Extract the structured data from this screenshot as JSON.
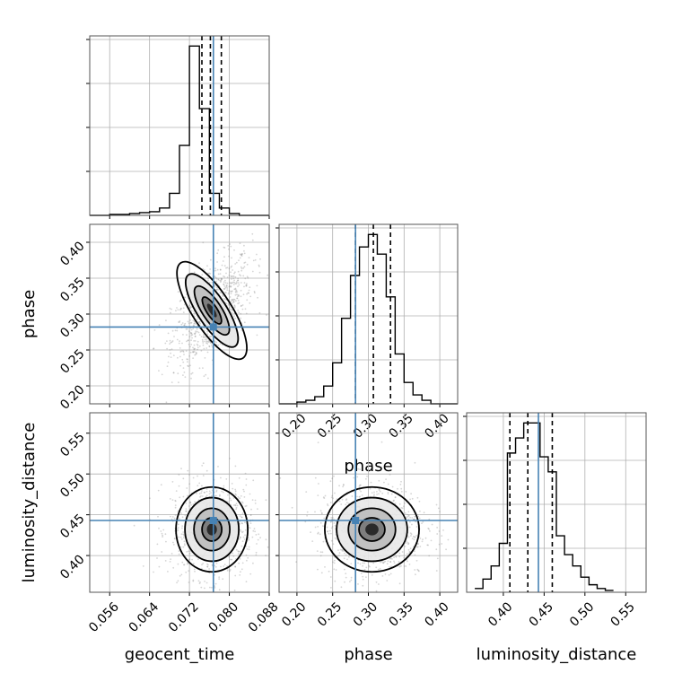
{
  "colors": {
    "truth": "#4682b4",
    "hist": "#000000",
    "grid": "#b0b0b0",
    "scatter": "#888888"
  },
  "chart_data": [
    {
      "type": "histogram",
      "panel": "geocent_time",
      "xlim": [
        0.052,
        0.088
      ],
      "bin_edges": [
        0.052,
        0.054,
        0.056,
        0.058,
        0.06,
        0.062,
        0.064,
        0.066,
        0.068,
        0.07,
        0.072,
        0.074,
        0.076,
        0.078,
        0.08,
        0.082,
        0.084,
        0.086,
        0.088
      ],
      "counts": [
        0,
        0,
        0.005,
        0.005,
        0.01,
        0.015,
        0.02,
        0.04,
        0.12,
        0.38,
        0.92,
        0.58,
        0.12,
        0.04,
        0.01,
        0,
        0,
        0
      ],
      "quantile_lines": [
        0.0745,
        0.0762,
        0.0784
      ],
      "truth": 0.0768,
      "grid": true
    },
    {
      "type": "histogram",
      "panel": "phase",
      "xlim": [
        0.175,
        0.425
      ],
      "bin_edges": [
        0.175,
        0.1875,
        0.2,
        0.2125,
        0.225,
        0.2375,
        0.25,
        0.2625,
        0.275,
        0.2875,
        0.3,
        0.3125,
        0.325,
        0.3375,
        0.35,
        0.3625,
        0.375,
        0.3875,
        0.4,
        0.4125,
        0.425
      ],
      "counts": [
        0,
        0,
        0.01,
        0.02,
        0.04,
        0.1,
        0.23,
        0.48,
        0.72,
        0.88,
        0.95,
        0.84,
        0.6,
        0.28,
        0.12,
        0.05,
        0.02,
        0,
        0,
        0
      ],
      "quantile_lines": [
        0.282,
        0.307,
        0.331
      ],
      "truth": 0.282,
      "xticks": [
        "0.20",
        "0.25",
        "0.30",
        "0.35",
        "0.40"
      ],
      "xlabel": "phase",
      "grid": true
    },
    {
      "type": "histogram",
      "panel": "luminosity_distance",
      "xlim": [
        0.355,
        0.575
      ],
      "bin_edges": [
        0.365,
        0.375,
        0.385,
        0.395,
        0.405,
        0.415,
        0.425,
        0.435,
        0.445,
        0.455,
        0.465,
        0.475,
        0.485,
        0.495,
        0.505,
        0.515,
        0.525,
        0.535
      ],
      "counts": [
        0.02,
        0.07,
        0.14,
        0.26,
        0.74,
        0.82,
        0.9,
        0.9,
        0.72,
        0.64,
        0.3,
        0.2,
        0.14,
        0.08,
        0.04,
        0.02,
        0.01
      ],
      "quantile_lines": [
        0.408,
        0.43,
        0.46
      ],
      "truth": 0.443,
      "xticks": [
        "0.40",
        "0.45",
        "0.50",
        "0.55"
      ],
      "xlabel": "luminosity_distance",
      "grid": true
    },
    {
      "type": "scatter",
      "panel": "phase vs geocent_time",
      "xlim": [
        0.052,
        0.088
      ],
      "ylim": [
        0.175,
        0.425
      ],
      "center": [
        0.0765,
        0.305
      ],
      "spread": [
        0.0035,
        0.033
      ],
      "correlation": 0.55,
      "truth": [
        0.0768,
        0.282
      ],
      "yticks": [
        "0.20",
        "0.25",
        "0.30",
        "0.35",
        "0.40"
      ],
      "ylabel": "phase",
      "grid": true
    },
    {
      "type": "scatter",
      "panel": "luminosity_distance vs geocent_time",
      "xlim": [
        0.052,
        0.088
      ],
      "ylim": [
        0.355,
        0.575
      ],
      "center": [
        0.0765,
        0.432
      ],
      "spread": [
        0.0036,
        0.026
      ],
      "correlation": 0.0,
      "truth": [
        0.0768,
        0.443
      ],
      "xticks": [
        "0.056",
        "0.064",
        "0.072",
        "0.080",
        "0.088"
      ],
      "yticks": [
        "0.40",
        "0.45",
        "0.50",
        "0.55"
      ],
      "xlabel": "geocent_time",
      "ylabel": "luminosity_distance",
      "grid": true
    },
    {
      "type": "scatter",
      "panel": "luminosity_distance vs phase",
      "xlim": [
        0.175,
        0.425
      ],
      "ylim": [
        0.355,
        0.575
      ],
      "center": [
        0.305,
        0.432
      ],
      "spread": [
        0.033,
        0.026
      ],
      "correlation": 0.0,
      "truth": [
        0.282,
        0.443
      ],
      "xticks": [
        "0.20",
        "0.25",
        "0.30",
        "0.35",
        "0.40"
      ],
      "xlabel": "phase",
      "grid": true
    }
  ]
}
